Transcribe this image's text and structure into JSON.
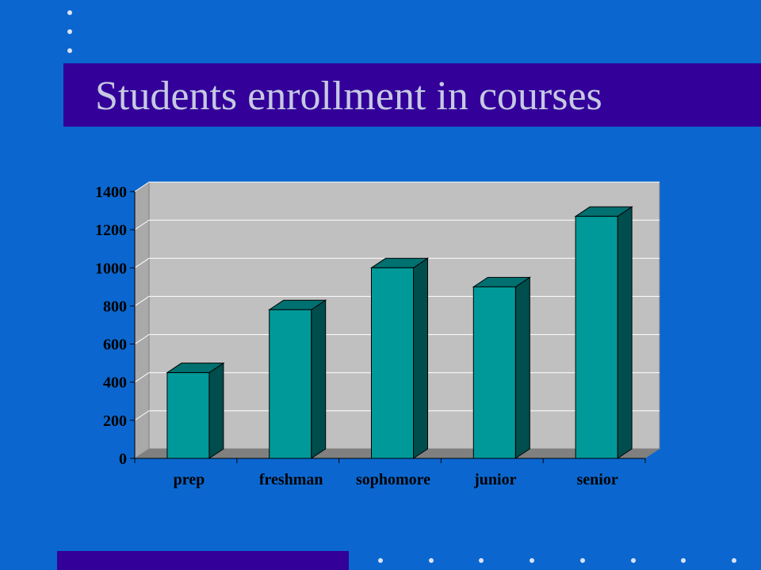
{
  "slide": {
    "title": "Students enrollment in courses",
    "colors": {
      "background": "#0b67cf",
      "title_band": "#330099",
      "title_text": "#c6c9e2",
      "bar_front": "#009999",
      "bar_side": "#004d4d",
      "bar_top": "#007070",
      "plot_back": "#c0c0c0",
      "plot_floor": "#808080"
    },
    "decor": {
      "top_dots": 3,
      "bottom_dots": 8
    }
  },
  "chart_data": {
    "type": "bar",
    "style": "3d-column",
    "categories": [
      "prep",
      "freshman",
      "sophomore",
      "junior",
      "senior"
    ],
    "values": [
      450,
      780,
      1000,
      900,
      1270
    ],
    "title": "",
    "xlabel": "",
    "ylabel": "",
    "ylim": [
      0,
      1400
    ],
    "yticks": [
      0,
      200,
      400,
      600,
      800,
      1000,
      1200,
      1400
    ],
    "grid": true,
    "legend": "none"
  }
}
